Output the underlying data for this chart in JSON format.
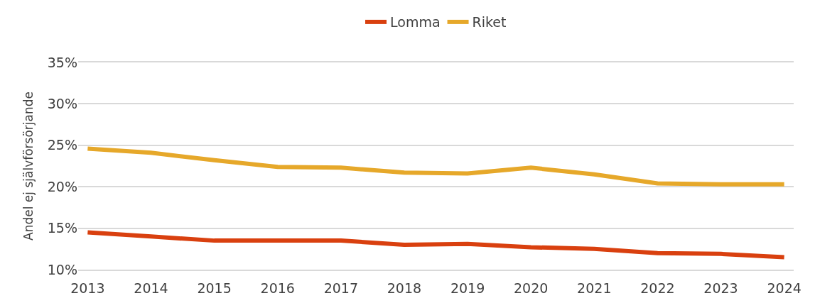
{
  "chart_data": {
    "type": "line",
    "ylabel": "Andel ej självförsörjande",
    "categories": [
      "2013",
      "2014",
      "2015",
      "2016",
      "2017",
      "2018",
      "2019",
      "2020",
      "2021",
      "2022",
      "2023",
      "2024"
    ],
    "series": [
      {
        "name": "Lomma",
        "color": "#d9400f",
        "values": [
          14.5,
          14.0,
          13.5,
          13.5,
          13.5,
          13.0,
          13.1,
          12.7,
          12.5,
          12.0,
          11.9,
          11.5
        ]
      },
      {
        "name": "Riket",
        "color": "#e6a82a",
        "values": [
          24.6,
          24.1,
          23.2,
          22.4,
          22.3,
          21.7,
          21.6,
          22.3,
          21.5,
          20.4,
          20.3,
          20.3
        ]
      }
    ],
    "ylim": [
      10,
      35
    ],
    "yticks": [
      {
        "value": 10,
        "label": "10%"
      },
      {
        "value": 15,
        "label": "15%"
      },
      {
        "value": 20,
        "label": "20%"
      },
      {
        "value": 25,
        "label": "25%"
      },
      {
        "value": 30,
        "label": "30%"
      },
      {
        "value": 35,
        "label": "35%"
      }
    ],
    "grid": "y",
    "legend": "top",
    "marker": "none",
    "line_style": "solid"
  }
}
